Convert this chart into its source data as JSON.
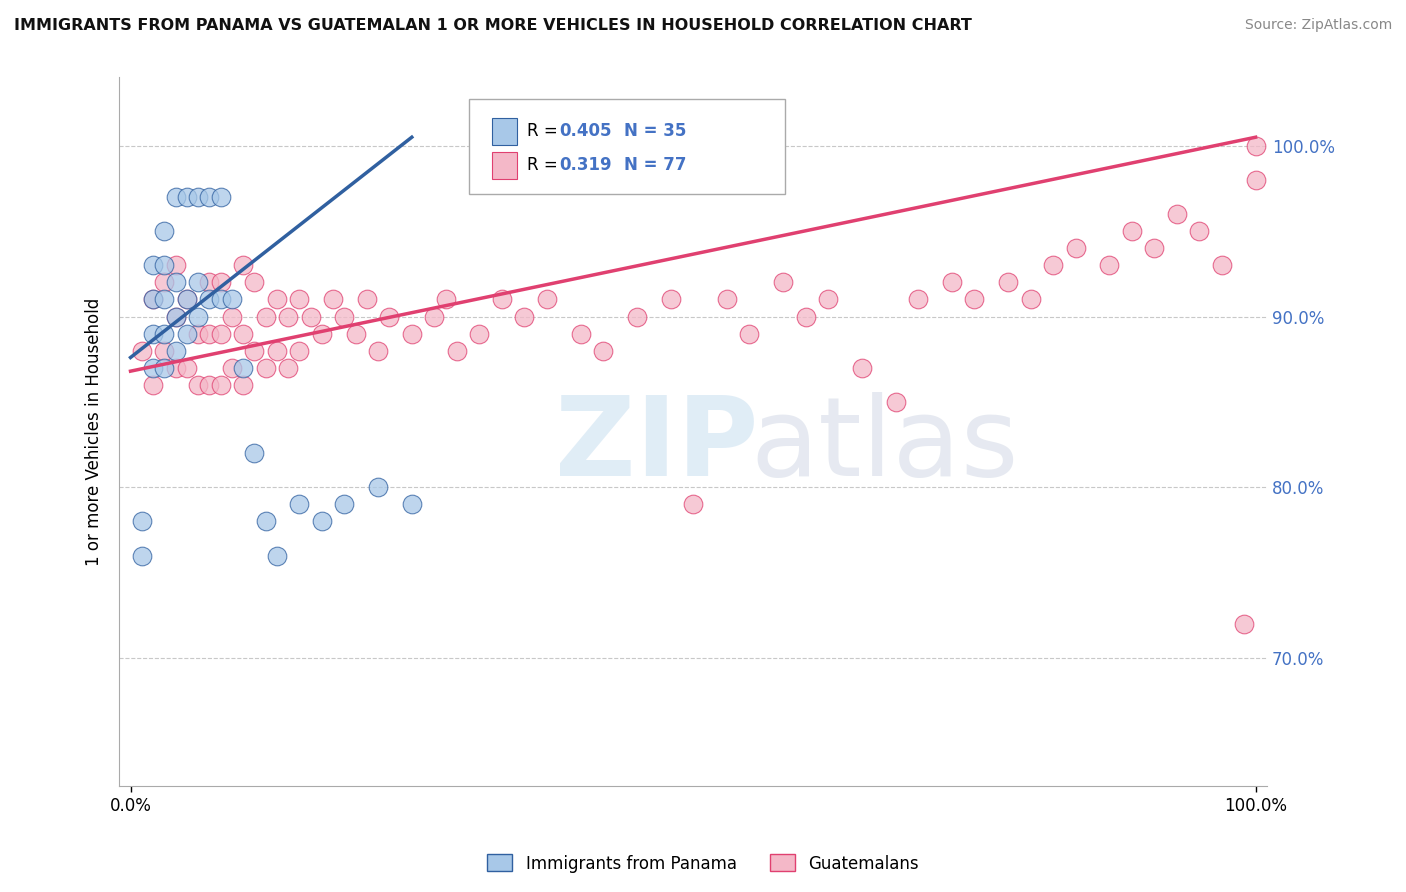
{
  "title": "IMMIGRANTS FROM PANAMA VS GUATEMALAN 1 OR MORE VEHICLES IN HOUSEHOLD CORRELATION CHART",
  "source": "Source: ZipAtlas.com",
  "legend_label1": "Immigrants from Panama",
  "legend_label2": "Guatemalans",
  "r_panama": 0.405,
  "n_panama": 35,
  "r_guatemalan": 0.319,
  "n_guatemalan": 77,
  "blue_color": "#a8c8e8",
  "pink_color": "#f4b8c8",
  "blue_line_color": "#3060a0",
  "pink_line_color": "#e04070",
  "ymin": 0.625,
  "ymax": 1.04,
  "xmin": -0.01,
  "xmax": 1.01,
  "ytick_labels": [
    "70.0%",
    "80.0%",
    "90.0%",
    "100.0%"
  ],
  "ytick_values": [
    0.7,
    0.8,
    0.9,
    1.0
  ],
  "panama_x": [
    0.01,
    0.01,
    0.02,
    0.02,
    0.02,
    0.02,
    0.03,
    0.03,
    0.03,
    0.03,
    0.03,
    0.04,
    0.04,
    0.04,
    0.04,
    0.05,
    0.05,
    0.05,
    0.06,
    0.06,
    0.06,
    0.07,
    0.07,
    0.08,
    0.08,
    0.09,
    0.1,
    0.11,
    0.12,
    0.13,
    0.15,
    0.17,
    0.19,
    0.22,
    0.25
  ],
  "panama_y": [
    0.76,
    0.78,
    0.87,
    0.89,
    0.91,
    0.93,
    0.87,
    0.89,
    0.91,
    0.93,
    0.95,
    0.88,
    0.9,
    0.92,
    0.97,
    0.89,
    0.91,
    0.97,
    0.9,
    0.92,
    0.97,
    0.91,
    0.97,
    0.91,
    0.97,
    0.91,
    0.87,
    0.82,
    0.78,
    0.76,
    0.79,
    0.78,
    0.79,
    0.8,
    0.79
  ],
  "guatemalan_x": [
    0.01,
    0.02,
    0.02,
    0.03,
    0.03,
    0.04,
    0.04,
    0.04,
    0.05,
    0.05,
    0.06,
    0.06,
    0.07,
    0.07,
    0.07,
    0.08,
    0.08,
    0.08,
    0.09,
    0.09,
    0.1,
    0.1,
    0.1,
    0.11,
    0.11,
    0.12,
    0.12,
    0.13,
    0.13,
    0.14,
    0.14,
    0.15,
    0.15,
    0.16,
    0.17,
    0.18,
    0.19,
    0.2,
    0.21,
    0.22,
    0.23,
    0.25,
    0.27,
    0.28,
    0.29,
    0.31,
    0.33,
    0.35,
    0.37,
    0.4,
    0.42,
    0.45,
    0.48,
    0.5,
    0.53,
    0.55,
    0.58,
    0.6,
    0.62,
    0.65,
    0.68,
    0.7,
    0.73,
    0.75,
    0.78,
    0.8,
    0.82,
    0.84,
    0.87,
    0.89,
    0.91,
    0.93,
    0.95,
    0.97,
    0.99,
    1.0,
    1.0
  ],
  "guatemalan_y": [
    0.88,
    0.86,
    0.91,
    0.88,
    0.92,
    0.87,
    0.9,
    0.93,
    0.87,
    0.91,
    0.86,
    0.89,
    0.86,
    0.89,
    0.92,
    0.86,
    0.89,
    0.92,
    0.87,
    0.9,
    0.86,
    0.89,
    0.93,
    0.88,
    0.92,
    0.87,
    0.9,
    0.88,
    0.91,
    0.87,
    0.9,
    0.88,
    0.91,
    0.9,
    0.89,
    0.91,
    0.9,
    0.89,
    0.91,
    0.88,
    0.9,
    0.89,
    0.9,
    0.91,
    0.88,
    0.89,
    0.91,
    0.9,
    0.91,
    0.89,
    0.88,
    0.9,
    0.91,
    0.79,
    0.91,
    0.89,
    0.92,
    0.9,
    0.91,
    0.87,
    0.85,
    0.91,
    0.92,
    0.91,
    0.92,
    0.91,
    0.93,
    0.94,
    0.93,
    0.95,
    0.94,
    0.96,
    0.95,
    0.93,
    0.72,
    0.98,
    1.0
  ],
  "blue_line_x0": 0.0,
  "blue_line_y0": 0.876,
  "blue_line_x1": 0.25,
  "blue_line_y1": 1.005,
  "pink_line_x0": 0.0,
  "pink_line_y0": 0.868,
  "pink_line_x1": 1.0,
  "pink_line_y1": 1.005
}
